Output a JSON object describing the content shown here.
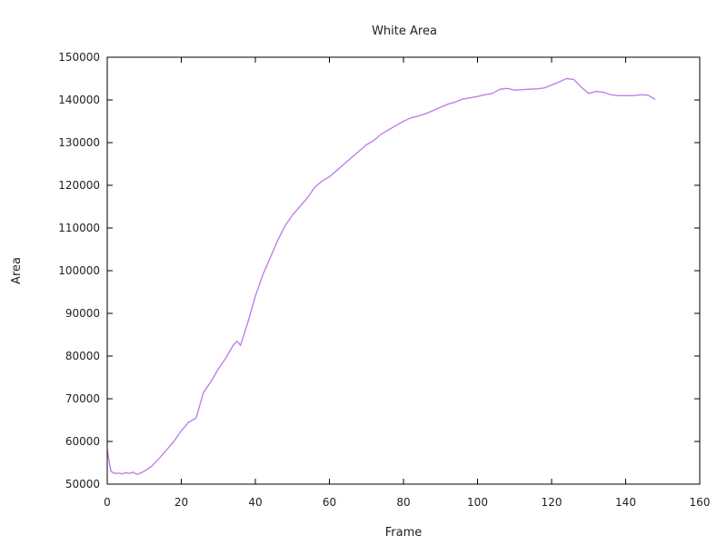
{
  "chart_data": {
    "type": "line",
    "title": "White Area",
    "xlabel": "Frame",
    "ylabel": "Area",
    "xlim": [
      0,
      160
    ],
    "ylim": [
      50000,
      150000
    ],
    "xticks": [
      0,
      20,
      40,
      60,
      80,
      100,
      120,
      140,
      160
    ],
    "yticks": [
      50000,
      60000,
      70000,
      80000,
      90000,
      100000,
      110000,
      120000,
      130000,
      140000,
      150000
    ],
    "grid": false,
    "legend": "none",
    "series": [
      {
        "color": "#c080e8",
        "x": [
          0,
          1,
          2,
          3,
          4,
          5,
          6,
          7,
          8,
          9,
          10,
          12,
          14,
          16,
          18,
          20,
          22,
          24,
          26,
          28,
          30,
          32,
          34,
          35,
          36,
          38,
          40,
          42,
          44,
          46,
          48,
          50,
          52,
          54,
          56,
          58,
          60,
          62,
          64,
          66,
          68,
          70,
          72,
          74,
          76,
          78,
          80,
          82,
          84,
          86,
          88,
          90,
          92,
          94,
          96,
          98,
          100,
          102,
          104,
          106,
          108,
          110,
          112,
          114,
          116,
          118,
          120,
          122,
          124,
          126,
          128,
          130,
          132,
          134,
          136,
          138,
          140,
          142,
          144,
          146,
          148
        ],
        "y": [
          58000,
          53000,
          52500,
          52600,
          52400,
          52700,
          52500,
          52800,
          52300,
          52600,
          53000,
          54200,
          56000,
          58000,
          60000,
          62500,
          64500,
          65500,
          71500,
          74000,
          77000,
          79500,
          82500,
          83500,
          82500,
          88000,
          94000,
          99000,
          103000,
          107000,
          110500,
          113000,
          115000,
          117000,
          119500,
          121000,
          122000,
          123500,
          125000,
          126500,
          128000,
          129500,
          130500,
          132000,
          133000,
          134000,
          135000,
          135800,
          136200,
          136800,
          137500,
          138300,
          139000,
          139500,
          140200,
          140500,
          140800,
          141200,
          141500,
          142500,
          142700,
          142300,
          142400,
          142500,
          142600,
          142800,
          143500,
          144200,
          145000,
          144800,
          143000,
          141500,
          142000,
          141800,
          141200,
          141000,
          141000,
          141000,
          141200,
          141100,
          140100
        ]
      }
    ]
  }
}
